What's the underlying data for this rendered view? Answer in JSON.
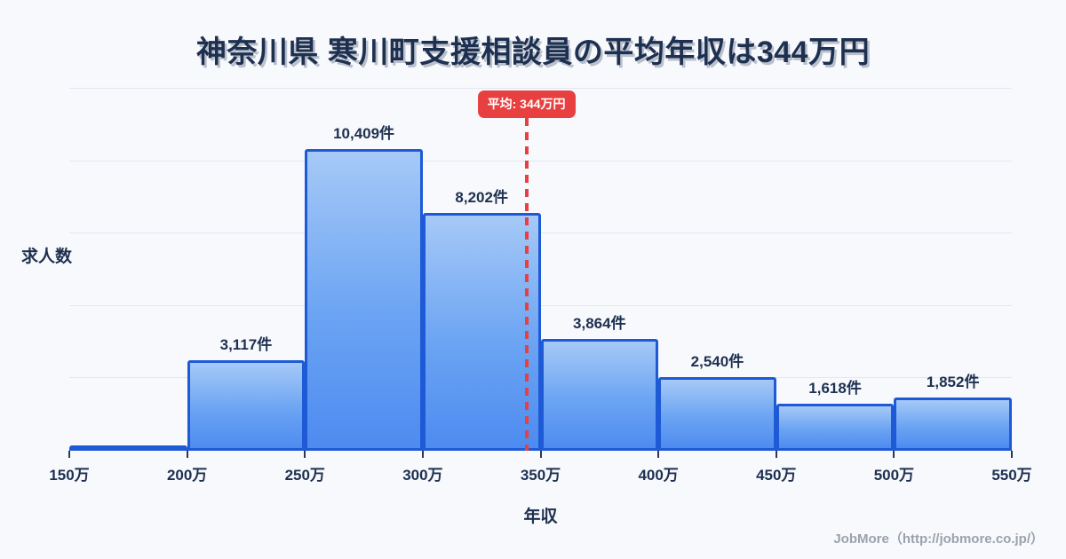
{
  "page": {
    "background": "#f7f9fc",
    "title": "神奈川県 寒川町支援相談員の平均年収は344万円",
    "footer": "JobMore（http://jobmore.co.jp/）"
  },
  "chart_data": {
    "type": "bar",
    "subtype": "histogram",
    "title": "神奈川県 寒川町支援相談員の平均年収は344万円",
    "xlabel": "年収",
    "ylabel": "求人数",
    "bin_edges": [
      150,
      200,
      250,
      300,
      350,
      400,
      450,
      500,
      550
    ],
    "bin_edge_labels": [
      "150万",
      "200万",
      "250万",
      "300万",
      "350万",
      "400万",
      "450万",
      "500万",
      "550万"
    ],
    "values": [
      150,
      3117,
      10409,
      8202,
      3864,
      2540,
      1618,
      1852
    ],
    "value_labels": [
      "",
      "3,117件",
      "10,409件",
      "8,202件",
      "3,864件",
      "2,540件",
      "1,618件",
      "1,852件"
    ],
    "ylim": [
      0,
      12500
    ],
    "gridlines": [
      2500,
      5000,
      7500,
      10000,
      12500
    ],
    "grid": "horizontal",
    "legend": "none",
    "average": {
      "value": 344,
      "label": "平均: 344万円"
    },
    "colors": {
      "bar_fill_top": "#a6c9f7",
      "bar_fill_bottom": "#4e8bf0",
      "bar_border": "#1e5ad6",
      "average_marker": "#e84040",
      "text": "#1e3050",
      "gridline": "#e2e8f2",
      "footer_text": "#9aa2ad",
      "background": "#f7f9fc"
    }
  }
}
